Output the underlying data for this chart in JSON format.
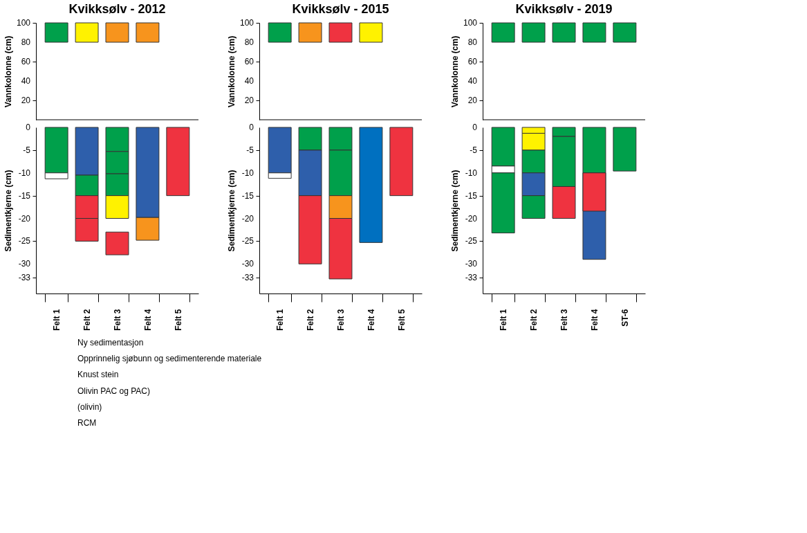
{
  "chart_data": [
    {
      "type": "bar",
      "title": "Kvikksølv - 2012",
      "ylabel": "Vannkolonne (cm)",
      "categories": [
        null,
        null,
        null,
        null,
        null
      ],
      "ylim": [
        0,
        100
      ],
      "yticks": [
        20,
        40,
        60,
        80,
        100
      ],
      "grid": false,
      "ref_lines": [
        {
          "axis": "y",
          "value": 0,
          "label": null
        }
      ],
      "series": [
        {
          "base": [
            80,
            80,
            80,
            80,
            null
          ],
          "values": [
            20,
            20,
            20,
            20,
            null
          ],
          "colors": [
            "#00a04b",
            "#fff200",
            "#f7941d",
            "#f7941d",
            null
          ]
        }
      ]
    },
    {
      "type": "bar",
      "title": "Kvikksølv - 2015",
      "ylabel": "Vannkolonne (cm)",
      "categories": [
        null,
        null,
        null,
        null,
        null
      ],
      "ylim": [
        0,
        100
      ],
      "yticks": [
        20,
        40,
        60,
        80,
        100
      ],
      "grid": false,
      "ref_lines": [
        {
          "axis": "y",
          "value": 0,
          "label": null
        }
      ],
      "series": [
        {
          "base": [
            80,
            80,
            80,
            80,
            null
          ],
          "values": [
            20,
            20,
            20,
            20,
            null
          ],
          "colors": [
            "#00a04b",
            "#f7941d",
            "#ef3340",
            "#fff200",
            null
          ]
        }
      ]
    },
    {
      "type": "bar",
      "title": "Kvikksølv - 2019",
      "ylabel": "Vannkolonne (cm)",
      "categories": [
        null,
        null,
        null,
        null,
        null
      ],
      "ylim": [
        0,
        100
      ],
      "yticks": [
        20,
        40,
        60,
        80,
        100
      ],
      "grid": false,
      "ref_lines": [
        {
          "axis": "y",
          "value": 0,
          "label": null
        }
      ],
      "series": [
        {
          "base": [
            80,
            80,
            80,
            80,
            80
          ],
          "values": [
            20,
            20,
            20,
            20,
            20
          ],
          "colors": [
            "#00a04b",
            "#00a04b",
            "#00a04b",
            "#00a04b",
            "#00a04b"
          ]
        }
      ]
    },
    {
      "type": "bar",
      "ylabel": "Sedimentkjerne (cm)",
      "categories": [
        "Felt 1",
        "Felt 2",
        "Felt 3",
        "Felt 4",
        "Felt 5"
      ],
      "ylim": [
        -36.5,
        0
      ],
      "yticks": [
        0,
        -5,
        -10,
        -15,
        -20,
        -25,
        -30,
        -33
      ],
      "grid": false,
      "annotations": [
        "Ny sedimentasjon",
        "Opprinnelig sjøbunn og sedimenterende materiale",
        "Knust stein",
        "Olivin PAC og PAC)",
        "(olivin)",
        "RCM"
      ],
      "series": [
        {
          "base": [
            0,
            0,
            0,
            0,
            0
          ],
          "values": [
            -10,
            -10.5,
            -5.3,
            -19.8,
            -15
          ],
          "colors": [
            "#00a04b",
            "#2e5fab",
            "#00a04b",
            "#2e5fab",
            "#ef3340"
          ]
        },
        {
          "base": [
            -10,
            -10.5,
            -5.3,
            -19.8,
            null
          ],
          "values": [
            -1.3,
            -4.5,
            -4.9,
            -5,
            null
          ],
          "colors": [
            "#ffffff",
            "#00a04b",
            "#00a04b",
            "#f7941d",
            null
          ]
        },
        {
          "base": [
            null,
            -15,
            -10.2,
            null,
            null
          ],
          "values": [
            null,
            -5,
            -4.8,
            null,
            null
          ],
          "colors": [
            null,
            "#ef3340",
            "#00a04b",
            null,
            null
          ]
        },
        {
          "base": [
            null,
            -20,
            -15,
            null,
            null
          ],
          "values": [
            null,
            -5,
            -5,
            null,
            null
          ],
          "colors": [
            null,
            "#ef3340",
            "#fff200",
            null,
            null
          ]
        },
        {
          "base": [
            null,
            null,
            -23,
            null,
            null
          ],
          "values": [
            null,
            null,
            -5,
            null,
            null
          ],
          "colors": [
            null,
            null,
            "#ef3340",
            null,
            null
          ]
        }
      ]
    },
    {
      "type": "bar",
      "ylabel": "Sedimentkjerne (cm)",
      "categories": [
        "Felt 1",
        "Felt 2",
        "Felt 3",
        "Felt 4",
        "Felt 5"
      ],
      "ylim": [
        -36.5,
        0
      ],
      "yticks": [
        0,
        -5,
        -10,
        -15,
        -20,
        -25,
        -30,
        -33
      ],
      "grid": false,
      "series": [
        {
          "base": [
            0,
            0,
            0,
            0,
            0
          ],
          "values": [
            -10,
            -5,
            -5,
            -25.3,
            -15
          ],
          "colors": [
            "#2e5fab",
            "#00a04b",
            "#00a04b",
            "#0070c0",
            "#ef3340"
          ]
        },
        {
          "base": [
            -10,
            -5,
            -5,
            null,
            null
          ],
          "values": [
            -1.2,
            -10,
            -10,
            null,
            null
          ],
          "colors": [
            "#ffffff",
            "#2e5fab",
            "#00a04b",
            null,
            null
          ]
        },
        {
          "base": [
            null,
            -15,
            -15,
            null,
            null
          ],
          "values": [
            null,
            -15,
            -5,
            null,
            null
          ],
          "colors": [
            null,
            "#ef3340",
            "#f7941d",
            null,
            null
          ]
        },
        {
          "base": [
            null,
            null,
            -20,
            null,
            null
          ],
          "values": [
            null,
            null,
            -13.3,
            null,
            null
          ],
          "colors": [
            null,
            null,
            "#ef3340",
            null,
            null
          ]
        }
      ]
    },
    {
      "type": "bar",
      "ylabel": "Sedimentkjerne (cm)",
      "categories": [
        "Felt 1",
        "Felt 2",
        "Felt 3",
        "Felt 4",
        "ST-6"
      ],
      "ylim": [
        -36.5,
        0
      ],
      "yticks": [
        0,
        -5,
        -10,
        -15,
        -20,
        -25,
        -30,
        -33
      ],
      "grid": false,
      "series": [
        {
          "base": [
            0,
            0,
            0,
            0,
            0
          ],
          "values": [
            -8.5,
            -1.3,
            -2,
            -10,
            -9.6
          ],
          "colors": [
            "#00a04b",
            "#fff200",
            "#00a04b",
            "#00a04b",
            "#00a04b"
          ]
        },
        {
          "base": [
            -8.5,
            -1.3,
            -2,
            -10,
            null
          ],
          "values": [
            -1.5,
            -3.7,
            -11,
            -19,
            null
          ],
          "colors": [
            "#ffffff",
            "#fff200",
            "#00a04b",
            "#2e5fab",
            null
          ]
        },
        {
          "base": [
            -10,
            -5,
            -13,
            -10,
            null
          ],
          "values": [
            -13.2,
            -5,
            -7,
            -8.4,
            null
          ],
          "colors": [
            "#00a04b",
            "#00a04b",
            "#ef3340",
            "#ef3340",
            null
          ]
        },
        {
          "base": [
            null,
            -10,
            null,
            null,
            null
          ],
          "values": [
            null,
            -5,
            null,
            null,
            null
          ],
          "colors": [
            null,
            "#2e5fab",
            null,
            null,
            null
          ]
        },
        {
          "base": [
            null,
            -15,
            null,
            null,
            null
          ],
          "values": [
            null,
            -5,
            null,
            null,
            null
          ],
          "colors": [
            null,
            "#00a04b",
            null,
            null,
            null
          ]
        }
      ]
    }
  ]
}
